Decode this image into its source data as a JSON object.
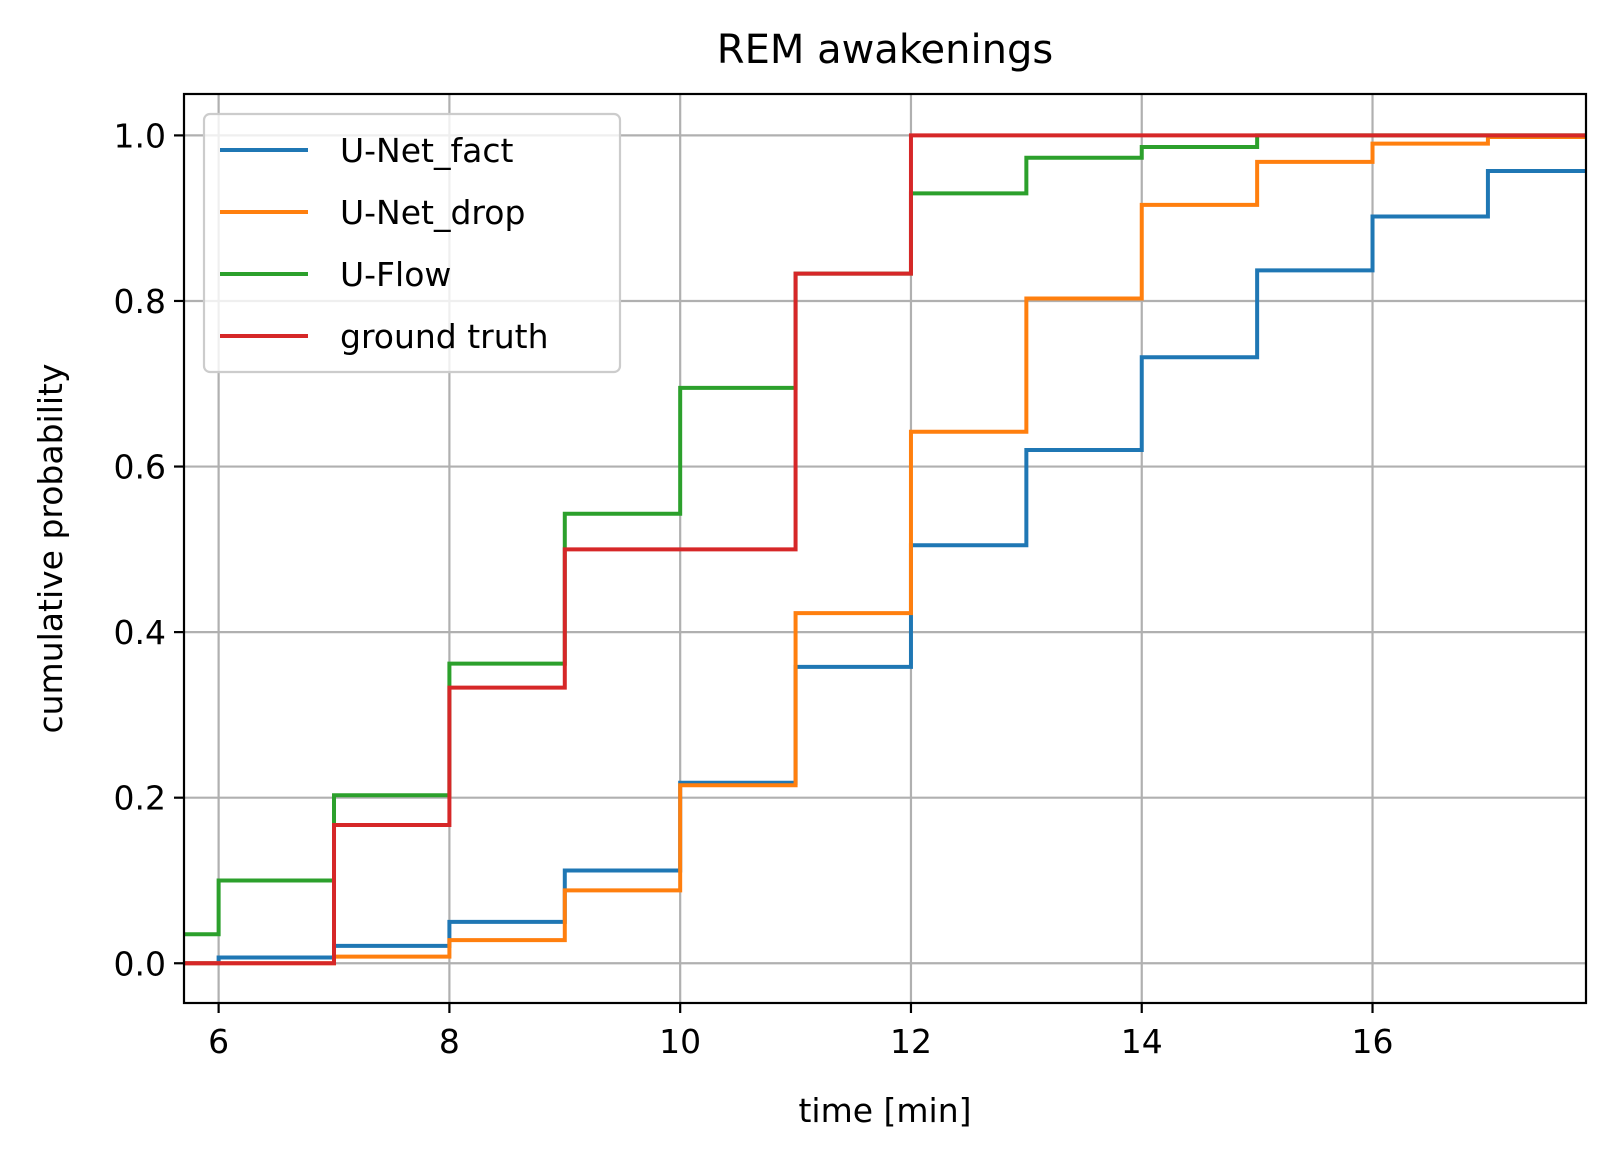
{
  "chart_data": {
    "type": "line",
    "drawstyle": "steps-post",
    "title": "REM awakenings",
    "xlabel": "time [min]",
    "ylabel": "cumulative probability",
    "xlim": [
      5.7,
      17.85
    ],
    "ylim": [
      -0.048,
      1.05
    ],
    "xticks": [
      6,
      8,
      10,
      12,
      14,
      16
    ],
    "yticks": [
      0.0,
      0.2,
      0.4,
      0.6,
      0.8,
      1.0
    ],
    "xtick_labels": [
      "6",
      "8",
      "10",
      "12",
      "14",
      "16"
    ],
    "ytick_labels": [
      "0.0",
      "0.2",
      "0.4",
      "0.6",
      "0.8",
      "1.0"
    ],
    "grid": true,
    "legend_position": "upper-left",
    "x": [
      5.7,
      6,
      7,
      8,
      9,
      10,
      11,
      12,
      13,
      14,
      15,
      16,
      17,
      17.85
    ],
    "series": [
      {
        "name": "U-Net_fact",
        "color": "#1f77b4",
        "values": [
          0.0,
          0.007,
          0.021,
          0.05,
          0.112,
          0.218,
          0.358,
          0.505,
          0.62,
          0.732,
          0.837,
          0.902,
          0.957,
          0.957
        ]
      },
      {
        "name": "U-Net_drop",
        "color": "#ff7f0e",
        "values": [
          0.0,
          0.0,
          0.008,
          0.028,
          0.088,
          0.215,
          0.423,
          0.642,
          0.803,
          0.916,
          0.968,
          0.99,
          0.998,
          0.998
        ]
      },
      {
        "name": "U-Flow",
        "color": "#2ca02c",
        "values": [
          0.035,
          0.1,
          0.203,
          0.362,
          0.543,
          0.695,
          0.833,
          0.93,
          0.973,
          0.986,
          1.0,
          1.0,
          1.0,
          1.0
        ]
      },
      {
        "name": "ground truth",
        "color": "#d62728",
        "values": [
          0.0,
          0.0,
          0.167,
          0.333,
          0.5,
          0.5,
          0.833,
          1.0,
          1.0,
          1.0,
          1.0,
          1.0,
          1.0,
          1.0
        ]
      }
    ]
  }
}
